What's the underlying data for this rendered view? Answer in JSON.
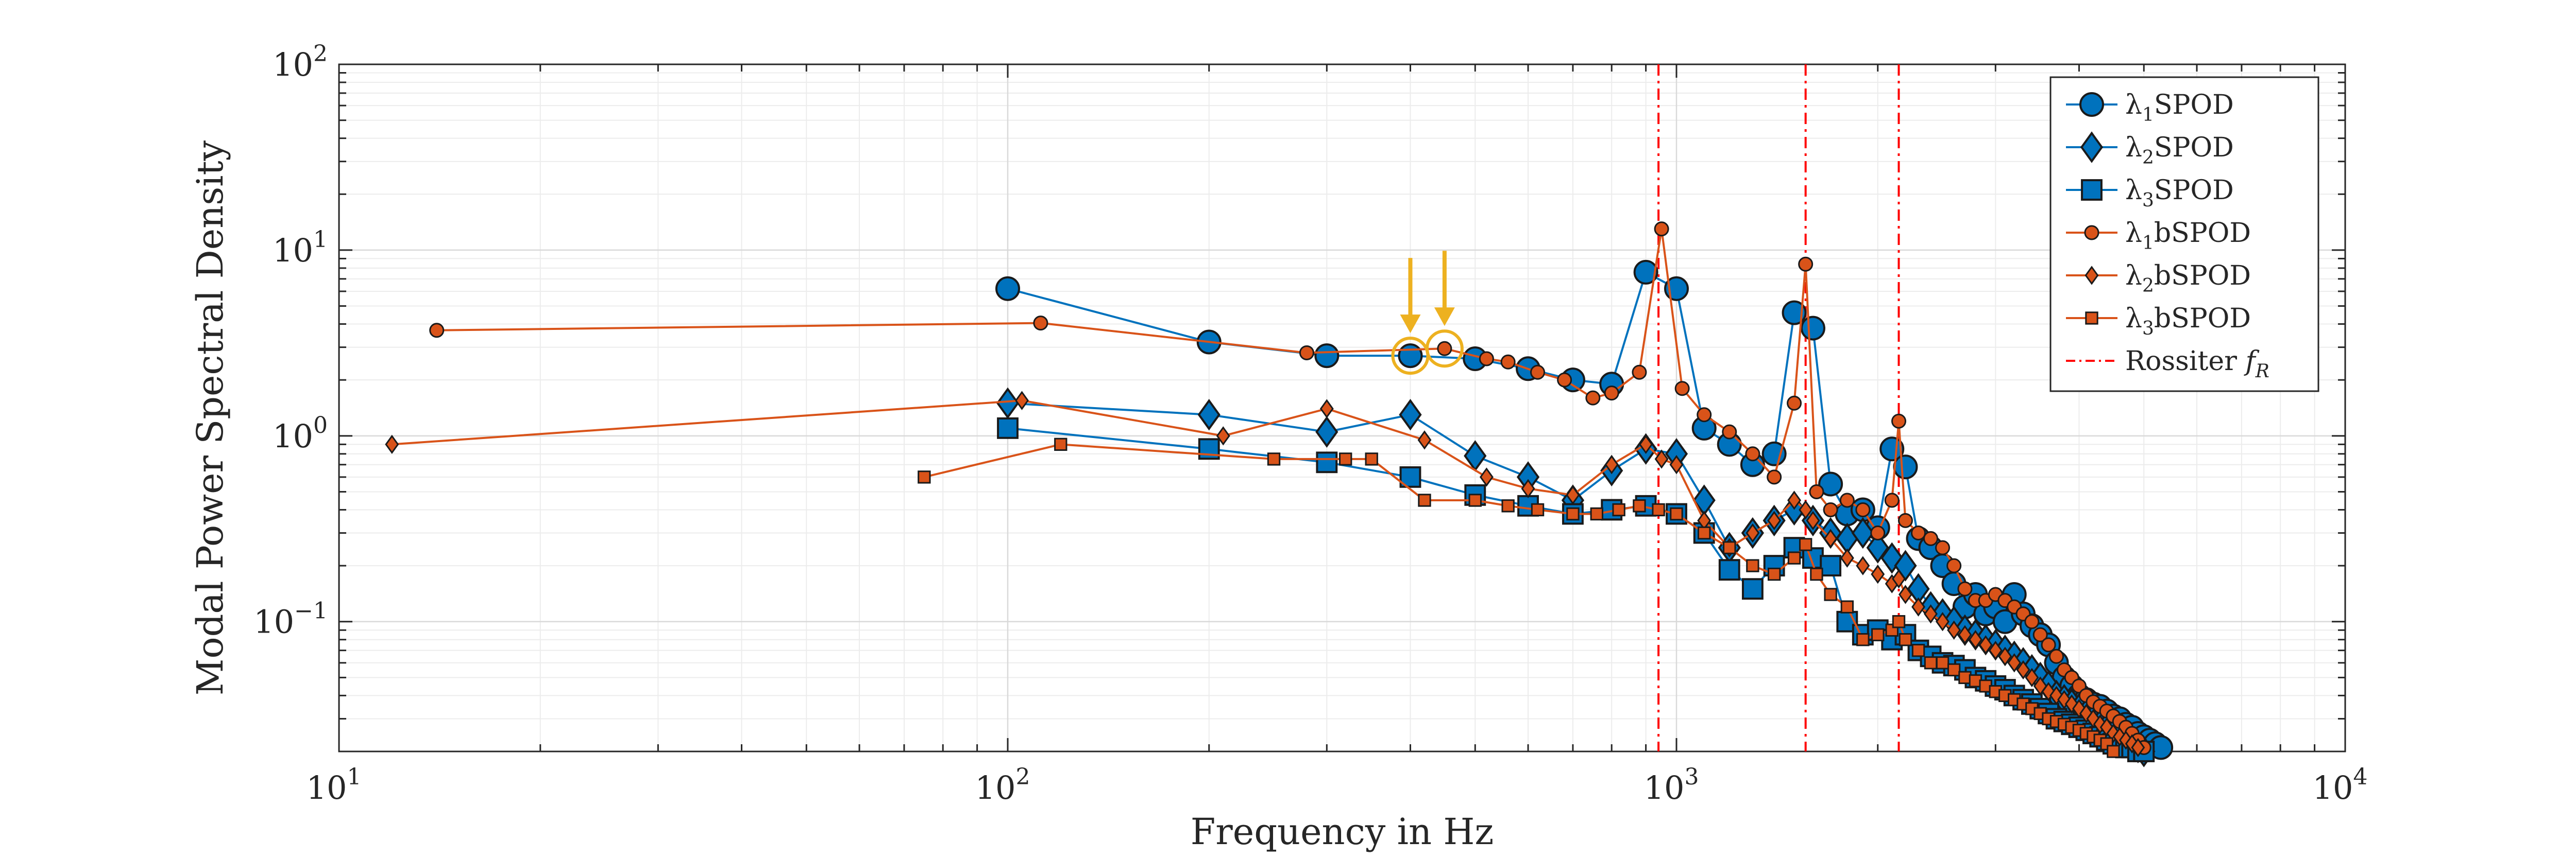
{
  "chart_data": {
    "type": "line",
    "xscale": "log",
    "yscale": "log",
    "xlim": [
      10,
      10000
    ],
    "ylim": [
      0.02,
      100
    ],
    "xlabel": "Frequency in Hz",
    "ylabel": "Modal Power Spectral Density",
    "grid": true,
    "minor_grid": true,
    "legend_position": "top-right",
    "x_ticks": [
      {
        "base": "10",
        "exp": "1",
        "value": 10
      },
      {
        "base": "10",
        "exp": "2",
        "value": 100
      },
      {
        "base": "10",
        "exp": "3",
        "value": 1000
      },
      {
        "base": "10",
        "exp": "4",
        "value": 10000
      }
    ],
    "y_ticks": [
      {
        "base": "10",
        "exp": "−1",
        "value": 0.1
      },
      {
        "base": "10",
        "exp": "0",
        "value": 1
      },
      {
        "base": "10",
        "exp": "1",
        "value": 10
      },
      {
        "base": "10",
        "exp": "2",
        "value": 100
      }
    ],
    "rossiter": {
      "label_main": "Rossiter ",
      "label_f": "f",
      "label_sub": "R",
      "frequencies": [
        940,
        1560,
        2150
      ],
      "color": "#ff0000"
    },
    "highlight": {
      "color": "#edb120",
      "points": [
        [
          400,
          2.7
        ],
        [
          450,
          2.95
        ]
      ]
    },
    "series": [
      {
        "symbol": "λ",
        "index": "1",
        "name": "SPOD",
        "color": "#0072bd",
        "marker": "circle",
        "x": [
          100,
          200,
          300,
          400,
          500,
          600,
          700,
          800,
          900,
          1000,
          1100,
          1200,
          1300,
          1400,
          1500,
          1600,
          1700,
          1800,
          1900,
          2000,
          2100,
          2200,
          2300,
          2400,
          2500,
          2600,
          2700,
          2800,
          2900,
          3000,
          3100,
          3200,
          3300,
          3400,
          3500,
          3600,
          3700,
          3800,
          3900,
          4000,
          4100,
          4200,
          4300,
          4400,
          4500,
          4600,
          4700,
          4800,
          4900,
          5000,
          5100,
          5200,
          5300
        ],
        "y": [
          6.2,
          3.2,
          2.7,
          2.7,
          2.6,
          2.3,
          2.0,
          1.9,
          7.6,
          6.2,
          1.1,
          0.9,
          0.7,
          0.8,
          4.6,
          3.8,
          0.55,
          0.38,
          0.4,
          0.32,
          0.85,
          0.68,
          0.28,
          0.25,
          0.2,
          0.16,
          0.12,
          0.14,
          0.11,
          0.12,
          0.1,
          0.14,
          0.11,
          0.095,
          0.085,
          0.075,
          0.06,
          0.05,
          0.045,
          0.04,
          0.038,
          0.036,
          0.035,
          0.033,
          0.031,
          0.03,
          0.028,
          0.027,
          0.025,
          0.024,
          0.023,
          0.022,
          0.021
        ]
      },
      {
        "symbol": "λ",
        "index": "2",
        "name": "SPOD",
        "color": "#0072bd",
        "marker": "diamond",
        "x": [
          100,
          200,
          300,
          400,
          500,
          600,
          700,
          800,
          900,
          1000,
          1100,
          1200,
          1300,
          1400,
          1500,
          1600,
          1700,
          1800,
          1900,
          2000,
          2100,
          2200,
          2300,
          2400,
          2500,
          2600,
          2700,
          2800,
          2900,
          3000,
          3100,
          3200,
          3300,
          3400,
          3500,
          3600,
          3700,
          3800,
          3900,
          4000,
          4100,
          4200,
          4300,
          4400,
          4500,
          4600,
          4700,
          4800,
          4900,
          5000
        ],
        "y": [
          1.5,
          1.3,
          1.05,
          1.3,
          0.78,
          0.6,
          0.45,
          0.65,
          0.85,
          0.8,
          0.45,
          0.25,
          0.3,
          0.35,
          0.4,
          0.35,
          0.3,
          0.28,
          0.3,
          0.25,
          0.22,
          0.2,
          0.15,
          0.12,
          0.11,
          0.1,
          0.09,
          0.085,
          0.08,
          0.075,
          0.07,
          0.065,
          0.06,
          0.055,
          0.05,
          0.045,
          0.04,
          0.038,
          0.036,
          0.034,
          0.032,
          0.03,
          0.028,
          0.027,
          0.025,
          0.024,
          0.023,
          0.022,
          0.021,
          0.02
        ]
      },
      {
        "symbol": "λ",
        "index": "3",
        "name": "SPOD",
        "color": "#0072bd",
        "marker": "square",
        "x": [
          100,
          200,
          300,
          400,
          500,
          600,
          700,
          800,
          900,
          1000,
          1100,
          1200,
          1300,
          1400,
          1500,
          1600,
          1700,
          1800,
          1900,
          2000,
          2100,
          2200,
          2300,
          2400,
          2500,
          2600,
          2700,
          2800,
          2900,
          3000,
          3100,
          3200,
          3300,
          3400,
          3500,
          3600,
          3700,
          3800,
          3900,
          4000,
          4100,
          4200,
          4300,
          4400,
          4500,
          4600,
          4700,
          4800,
          4900,
          5000
        ],
        "y": [
          1.1,
          0.85,
          0.72,
          0.6,
          0.48,
          0.42,
          0.38,
          0.4,
          0.42,
          0.38,
          0.3,
          0.19,
          0.15,
          0.2,
          0.25,
          0.22,
          0.2,
          0.1,
          0.085,
          0.09,
          0.08,
          0.085,
          0.07,
          0.065,
          0.06,
          0.058,
          0.055,
          0.05,
          0.048,
          0.045,
          0.043,
          0.04,
          0.038,
          0.036,
          0.034,
          0.032,
          0.03,
          0.029,
          0.028,
          0.027,
          0.026,
          0.025,
          0.024,
          0.023,
          0.022,
          0.022,
          0.021,
          0.021,
          0.02,
          0.02
        ]
      },
      {
        "symbol": "λ",
        "index": "1",
        "name": "bSPOD",
        "color": "#d95319",
        "marker": "circle",
        "x": [
          14,
          112,
          280,
          450,
          520,
          560,
          620,
          680,
          750,
          800,
          880,
          950,
          1020,
          1100,
          1200,
          1300,
          1400,
          1500,
          1560,
          1620,
          1700,
          1800,
          1900,
          2000,
          2100,
          2150,
          2200,
          2300,
          2400,
          2500,
          2600,
          2700,
          2800,
          2900,
          3000,
          3100,
          3200,
          3300,
          3400,
          3500,
          3600,
          3700,
          3800,
          3900,
          4000,
          4100,
          4200,
          4300,
          4400,
          4500,
          4600,
          4700,
          4800,
          4900,
          5000
        ],
        "y": [
          3.7,
          4.05,
          2.8,
          2.95,
          2.6,
          2.5,
          2.2,
          2.0,
          1.6,
          1.7,
          2.2,
          13.0,
          1.8,
          1.3,
          1.05,
          0.8,
          0.6,
          1.5,
          8.4,
          0.5,
          0.4,
          0.45,
          0.4,
          0.3,
          0.45,
          1.2,
          0.35,
          0.3,
          0.28,
          0.25,
          0.2,
          0.15,
          0.13,
          0.13,
          0.14,
          0.13,
          0.12,
          0.11,
          0.1,
          0.085,
          0.075,
          0.065,
          0.055,
          0.05,
          0.045,
          0.04,
          0.037,
          0.035,
          0.033,
          0.031,
          0.029,
          0.027,
          0.025,
          0.023,
          0.021
        ]
      },
      {
        "symbol": "λ",
        "index": "2",
        "name": "bSPOD",
        "color": "#d95319",
        "marker": "diamond",
        "x": [
          12,
          105,
          210,
          300,
          420,
          520,
          600,
          700,
          800,
          900,
          950,
          1000,
          1100,
          1200,
          1300,
          1400,
          1500,
          1560,
          1600,
          1700,
          1800,
          1900,
          2000,
          2100,
          2150,
          2200,
          2300,
          2400,
          2500,
          2600,
          2700,
          2800,
          2900,
          3000,
          3100,
          3200,
          3300,
          3400,
          3500,
          3600,
          3700,
          3800,
          3900,
          4000,
          4100,
          4200,
          4300,
          4400,
          4500,
          4600,
          4700,
          4800,
          4900
        ],
        "y": [
          0.9,
          1.55,
          1.0,
          1.4,
          0.95,
          0.6,
          0.52,
          0.48,
          0.7,
          0.9,
          0.75,
          0.7,
          0.35,
          0.25,
          0.3,
          0.35,
          0.45,
          0.4,
          0.35,
          0.28,
          0.22,
          0.2,
          0.18,
          0.16,
          0.17,
          0.14,
          0.12,
          0.11,
          0.1,
          0.09,
          0.085,
          0.08,
          0.075,
          0.07,
          0.065,
          0.06,
          0.055,
          0.05,
          0.045,
          0.042,
          0.04,
          0.038,
          0.036,
          0.034,
          0.032,
          0.03,
          0.028,
          0.027,
          0.025,
          0.024,
          0.023,
          0.022,
          0.021
        ]
      },
      {
        "symbol": "λ",
        "index": "3",
        "name": "bSPOD",
        "color": "#d95319",
        "marker": "square",
        "x": [
          75,
          120,
          250,
          320,
          350,
          420,
          500,
          560,
          620,
          700,
          760,
          820,
          880,
          940,
          1000,
          1100,
          1200,
          1300,
          1400,
          1500,
          1560,
          1620,
          1700,
          1800,
          1900,
          2000,
          2100,
          2150,
          2200,
          2300,
          2400,
          2500,
          2600,
          2700,
          2800,
          2900,
          3000,
          3100,
          3200,
          3300,
          3400,
          3500,
          3600,
          3700,
          3800,
          3900,
          4000,
          4100,
          4200,
          4300,
          4400,
          4500
        ],
        "y": [
          0.6,
          0.9,
          0.75,
          0.75,
          0.75,
          0.45,
          0.45,
          0.42,
          0.4,
          0.38,
          0.38,
          0.4,
          0.42,
          0.4,
          0.38,
          0.3,
          0.25,
          0.2,
          0.18,
          0.22,
          0.26,
          0.18,
          0.14,
          0.12,
          0.08,
          0.085,
          0.09,
          0.1,
          0.08,
          0.07,
          0.06,
          0.06,
          0.055,
          0.05,
          0.048,
          0.045,
          0.042,
          0.04,
          0.038,
          0.036,
          0.034,
          0.032,
          0.03,
          0.029,
          0.028,
          0.027,
          0.026,
          0.025,
          0.024,
          0.023,
          0.022,
          0.02
        ]
      }
    ]
  }
}
